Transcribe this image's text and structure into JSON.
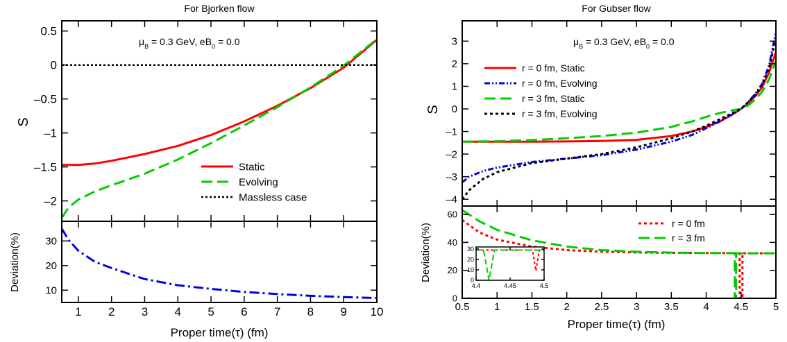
{
  "colors": {
    "static": "#ff0000",
    "evolving": "#00cc00",
    "deviation_blue": "#0000ee",
    "massless": "#000000",
    "r3_evolving": "#000000",
    "axis": "#000000"
  },
  "left": {
    "title": "For Bjorken flow",
    "annotation": {
      "mu": "μ",
      "mu_sub": "B",
      "mid": " = 0.3 GeV, eB",
      "eb_sub": "0",
      "end": " = 0.0"
    },
    "top_ylabel": "S",
    "bottom_ylabel": "Deviation(%)",
    "xlabel": "Proper time(τ) (fm)"
  },
  "right": {
    "title": "For Gubser flow",
    "annotation": {
      "mu": "μ",
      "mu_sub": "B",
      "mid": " = 0.3 GeV, eB",
      "eb_sub": "0",
      "end": " = 0.0"
    },
    "top_ylabel": "S",
    "bottom_ylabel": "Deviation(%)",
    "xlabel": "Proper time(τ) (fm)"
  },
  "chart_data": [
    {
      "id": "bjorken_s",
      "type": "line",
      "title": "For Bjorken flow",
      "xlabel": "",
      "ylabel": "S",
      "xlim": [
        0.5,
        10
      ],
      "ylim": [
        -2.3,
        0.65
      ],
      "x_ticks": [
        1,
        2,
        3,
        4,
        5,
        6,
        7,
        8,
        9,
        10
      ],
      "y_ticks": [
        0.5,
        0,
        -0.5,
        -1,
        -1.5,
        -2
      ],
      "y_tick_labels": [
        "0.5",
        "0",
        "–0.5",
        "–1",
        "–1.5",
        "–2"
      ],
      "legend_position": "bottom-right",
      "series": [
        {
          "name": "Static",
          "style": "solid",
          "x": [
            0.5,
            1,
            1.5,
            2,
            3,
            4,
            5,
            6,
            7,
            8,
            9,
            10
          ],
          "y": [
            -1.47,
            -1.47,
            -1.45,
            -1.41,
            -1.31,
            -1.19,
            -1.03,
            -0.83,
            -0.6,
            -0.34,
            -0.04,
            0.37
          ]
        },
        {
          "name": "Evolving",
          "style": "dash",
          "x": [
            0.5,
            0.7,
            1,
            1.5,
            2,
            3,
            4,
            5,
            6,
            7,
            8,
            9,
            10
          ],
          "y": [
            -2.25,
            -2.1,
            -1.98,
            -1.86,
            -1.77,
            -1.6,
            -1.39,
            -1.15,
            -0.89,
            -0.62,
            -0.33,
            -0.01,
            0.38
          ]
        },
        {
          "name": "Massless case",
          "style": "dot",
          "x": [
            0.5,
            10
          ],
          "y": [
            0,
            0
          ]
        }
      ]
    },
    {
      "id": "bjorken_dev",
      "type": "line",
      "xlabel": "Proper time(τ) (fm)",
      "ylabel": "Deviation(%)",
      "xlim": [
        0.5,
        10
      ],
      "ylim": [
        5,
        38
      ],
      "x_ticks": [
        1,
        2,
        3,
        4,
        5,
        6,
        7,
        8,
        9,
        10
      ],
      "y_ticks": [
        10,
        20,
        30
      ],
      "series": [
        {
          "name": "",
          "style": "dashdot",
          "x": [
            0.5,
            0.7,
            1,
            1.5,
            2,
            3,
            4,
            5,
            6,
            7,
            8,
            9,
            10
          ],
          "y": [
            35,
            30.5,
            26,
            21.5,
            19,
            14.5,
            12,
            10.5,
            9.3,
            8.4,
            7.7,
            7.2,
            6.8
          ]
        }
      ]
    },
    {
      "id": "gubser_s",
      "type": "line",
      "title": "For Gubser flow",
      "xlabel": "",
      "ylabel": "S",
      "xlim": [
        0.5,
        5
      ],
      "ylim": [
        -4.3,
        3.9
      ],
      "x_ticks": [
        0.5,
        1,
        1.5,
        2,
        2.5,
        3,
        3.5,
        4,
        4.5,
        5
      ],
      "y_ticks": [
        3,
        2,
        1,
        0,
        -1,
        -2,
        -3,
        -4
      ],
      "y_tick_labels": [
        "3",
        "2",
        "1",
        "0",
        "–1",
        "–2",
        "–3",
        "–4"
      ],
      "legend_position": "top-left",
      "series": [
        {
          "name": "r = 0 fm, Static",
          "style": "solid",
          "x": [
            0.5,
            1,
            1.5,
            2,
            2.5,
            3,
            3.5,
            3.8,
            4,
            4.2,
            4.4,
            4.5,
            4.6,
            4.7,
            4.8,
            4.9,
            5
          ],
          "y": [
            -1.45,
            -1.45,
            -1.45,
            -1.44,
            -1.42,
            -1.37,
            -1.2,
            -1.0,
            -0.8,
            -0.55,
            -0.2,
            0.0,
            0.25,
            0.55,
            0.95,
            1.6,
            2.5
          ]
        },
        {
          "name": "r = 0 fm, Evolving",
          "style": "dashdotdot",
          "x": [
            0.5,
            0.6,
            0.8,
            1,
            1.5,
            2,
            2.5,
            3,
            3.5,
            3.8,
            4,
            4.2,
            4.4,
            4.5,
            4.6,
            4.7,
            4.8,
            4.9,
            5
          ],
          "y": [
            -3.25,
            -3.0,
            -2.75,
            -2.6,
            -2.35,
            -2.2,
            -2.05,
            -1.8,
            -1.45,
            -1.15,
            -0.85,
            -0.55,
            -0.2,
            0.0,
            0.3,
            0.65,
            1.1,
            1.9,
            3.4
          ]
        },
        {
          "name": "r = 3 fm, Static",
          "style": "dash",
          "x": [
            0.5,
            1,
            1.5,
            2,
            2.5,
            3,
            3.5,
            3.8,
            4,
            4.2,
            4.4,
            4.5,
            4.6,
            4.7,
            4.8,
            4.9,
            5
          ],
          "y": [
            -1.45,
            -1.43,
            -1.38,
            -1.3,
            -1.2,
            -1.05,
            -0.8,
            -0.55,
            -0.35,
            -0.18,
            -0.05,
            0.0,
            0.15,
            0.4,
            0.75,
            1.3,
            2.1
          ]
        },
        {
          "name": "r = 3 fm, Evolving",
          "style": "dot",
          "x": [
            0.5,
            0.6,
            0.8,
            1,
            1.5,
            2,
            2.5,
            3,
            3.5,
            3.8,
            4,
            4.2,
            4.4,
            4.5,
            4.6,
            4.7,
            4.8,
            4.9,
            5
          ],
          "y": [
            -4.0,
            -3.6,
            -3.1,
            -2.8,
            -2.4,
            -2.2,
            -2.0,
            -1.7,
            -1.3,
            -1.0,
            -0.75,
            -0.45,
            -0.15,
            0.0,
            0.3,
            0.6,
            1.05,
            1.8,
            3.1
          ]
        }
      ]
    },
    {
      "id": "gubser_dev",
      "type": "line",
      "xlabel": "Proper time(τ) (fm)",
      "ylabel": "Deviation(%)",
      "xlim": [
        0.5,
        5
      ],
      "ylim": [
        0,
        66
      ],
      "x_ticks": [
        0.5,
        1,
        1.5,
        2,
        2.5,
        3,
        3.5,
        4,
        4.5,
        5
      ],
      "y_ticks": [
        0,
        20,
        40,
        60
      ],
      "legend_position": "top-right",
      "series": [
        {
          "name": "r = 0 fm",
          "style": "dot",
          "x": [
            0.5,
            0.75,
            1,
            1.5,
            2,
            2.5,
            3,
            3.5,
            4,
            4.48,
            4.48,
            4.52,
            4.52,
            5
          ],
          "y": [
            56,
            47,
            42,
            37,
            34.5,
            33.3,
            32.8,
            32.5,
            32.4,
            32.3,
            0,
            0,
            32.2,
            32.2
          ]
        },
        {
          "name": "r = 3 fm",
          "style": "dash",
          "x": [
            0.5,
            0.75,
            1,
            1.5,
            2,
            2.5,
            3,
            3.5,
            4,
            4.41,
            4.41,
            4.43,
            4.43,
            5
          ],
          "y": [
            63,
            55,
            49,
            41.5,
            37,
            34.5,
            33.3,
            32.7,
            32.4,
            32.3,
            0,
            0,
            32.2,
            32.2
          ]
        }
      ]
    },
    {
      "id": "gubser_dev_inset",
      "type": "line",
      "xlim": [
        4.4,
        4.5
      ],
      "ylim": [
        0,
        32
      ],
      "x_ticks": [
        4.4,
        4.45,
        4.5
      ],
      "y_ticks": [
        0,
        10,
        20,
        30
      ],
      "series": [
        {
          "name": "r = 0 fm",
          "style": "dot",
          "x": [
            4.4,
            4.483,
            4.488,
            4.493,
            4.5
          ],
          "y": [
            29,
            29,
            9,
            29,
            29
          ]
        },
        {
          "name": "r = 3 fm",
          "style": "dash",
          "x": [
            4.4,
            4.411,
            4.419,
            4.427,
            4.5
          ],
          "y": [
            29,
            29,
            0,
            29,
            29
          ]
        }
      ]
    }
  ]
}
